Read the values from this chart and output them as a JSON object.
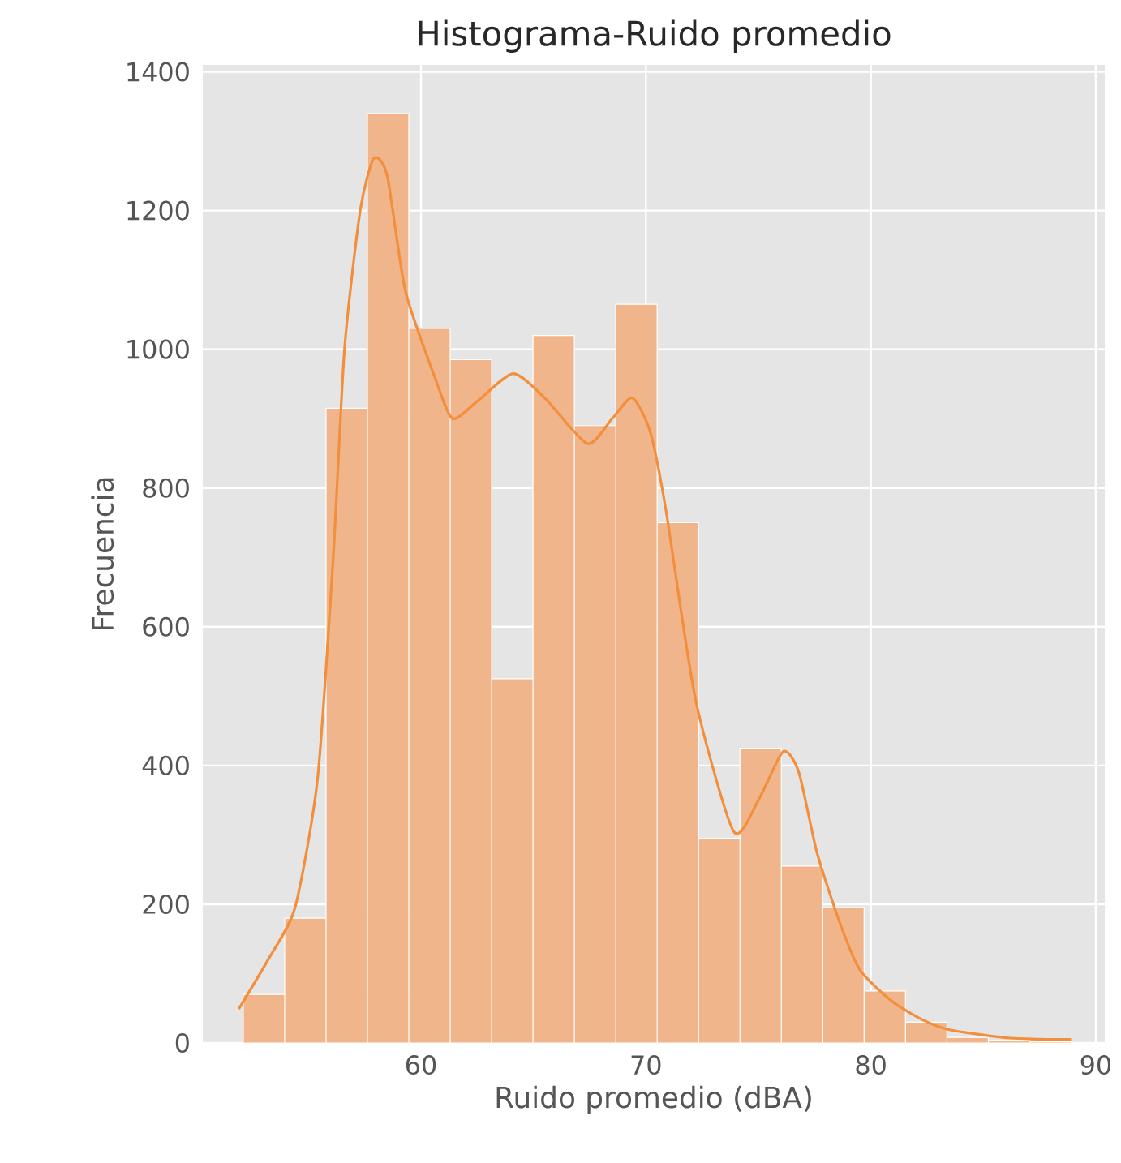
{
  "chart_data": {
    "type": "histogram",
    "title": "Histograma-Ruido promedio",
    "xlabel": "Ruido promedio (dBA)",
    "ylabel": "Frecuencia",
    "bins": [
      52.1,
      53.94,
      55.78,
      57.62,
      59.46,
      61.3,
      63.14,
      64.98,
      66.82,
      68.66,
      70.5,
      72.34,
      74.18,
      76.02,
      77.86,
      79.7,
      81.54,
      83.38,
      85.22,
      87.06,
      88.9
    ],
    "values": [
      70,
      180,
      915,
      1340,
      1030,
      985,
      525,
      1020,
      890,
      1065,
      750,
      295,
      425,
      255,
      195,
      75,
      30,
      8,
      4,
      2
    ],
    "color": "#f0b58a",
    "series": [
      {
        "type": "line",
        "color": "#f28e3c",
        "x": [
          51.9,
          53.2,
          54.4,
          55.4,
          56.1,
          56.6,
          57.3,
          57.9,
          58.5,
          59.3,
          60.6,
          61.4,
          62.5,
          64.1,
          65.5,
          67.4,
          68.5,
          69.4,
          70.2,
          70.9,
          72.2,
          73.9,
          75.0,
          76.1,
          76.8,
          77.6,
          78.6,
          79.5,
          80.9,
          82.2,
          83.5,
          86.2,
          88.9
        ],
        "values": [
          49,
          120,
          195,
          380,
          700,
          1000,
          1200,
          1275,
          1250,
          1085,
          961,
          900,
          925,
          965,
          930,
          864,
          900,
          930,
          880,
          766,
          496,
          305,
          350,
          420,
          390,
          275,
          175,
          106,
          61,
          35,
          19,
          7,
          5
        ]
      }
    ],
    "xlim": [
      50.3,
      90.4
    ],
    "ylim": [
      0,
      1410
    ],
    "xticks": [
      60,
      70,
      80,
      90
    ],
    "yticks": [
      0,
      200,
      400,
      600,
      800,
      1000,
      1200,
      1400
    ],
    "grid": true
  }
}
